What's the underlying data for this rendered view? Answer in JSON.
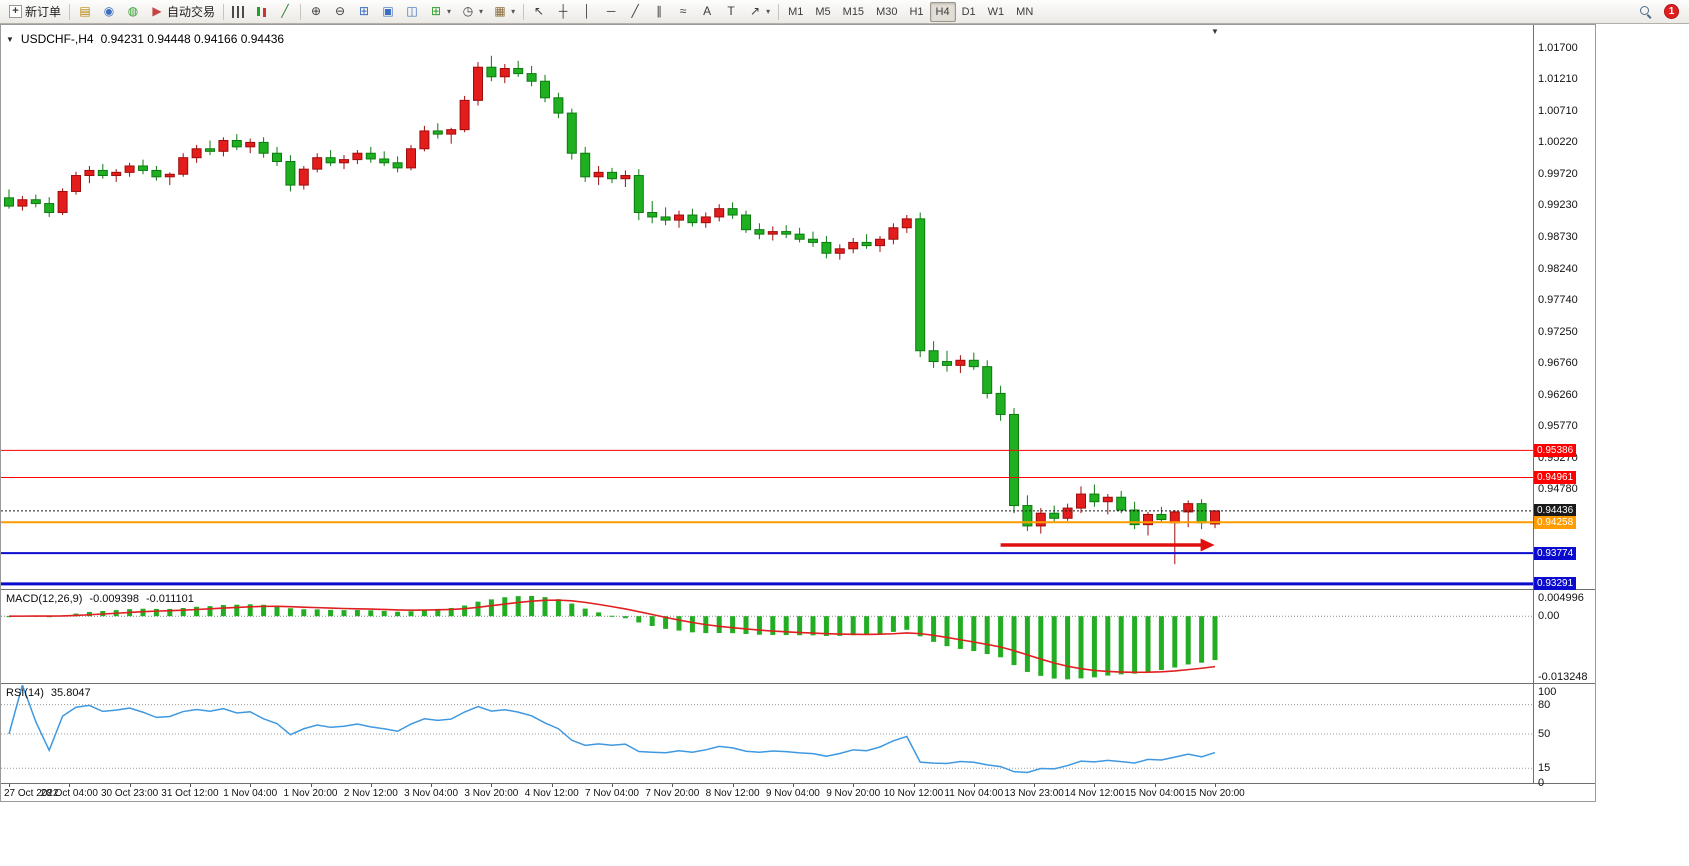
{
  "toolbar": {
    "notification_count": "1",
    "dropdown_glyph": "▾",
    "items": [
      {
        "type": "button",
        "name": "new-order-button",
        "icon_name": "new-order-icon",
        "glyph": "+",
        "cls": "ic-doc",
        "label": "新订单"
      },
      {
        "type": "sep"
      },
      {
        "type": "button",
        "name": "market-watch-button",
        "icon_name": "market-watch-icon",
        "glyph": "▤",
        "color": "#b8860b"
      },
      {
        "type": "button",
        "name": "navigator-button",
        "icon_name": "navigator-icon",
        "glyph": "◉",
        "color": "#3a6ec0"
      },
      {
        "type": "button",
        "name": "terminal-button",
        "icon_name": "terminal-icon",
        "glyph": "◍",
        "color": "#2f9e2f"
      },
      {
        "type": "button",
        "name": "autotrading-button",
        "icon_name": "autotrading-icon",
        "glyph": "▶",
        "color": "#c74444",
        "label": "自动交易"
      },
      {
        "type": "sep"
      },
      {
        "type": "button",
        "name": "bar-chart-button",
        "icon_name": "bar-chart-icon",
        "cls": "cs-bars"
      },
      {
        "type": "button",
        "name": "candlestick-chart-button",
        "icon_name": "candlestick-chart-icon",
        "cls": "cs-candles"
      },
      {
        "type": "button",
        "name": "line-chart-button",
        "icon_name": "line-chart-icon",
        "glyph": "╱",
        "color": "#2a7a2a"
      },
      {
        "type": "sep"
      },
      {
        "type": "button",
        "name": "zoom-in-button",
        "icon_name": "zoom-in-icon",
        "glyph": "⊕"
      },
      {
        "type": "button",
        "name": "zoom-out-button",
        "icon_name": "zoom-out-icon",
        "glyph": "⊖"
      },
      {
        "type": "button",
        "name": "tile-windows-button",
        "icon_name": "tile-windows-icon",
        "glyph": "⊞",
        "color": "#3a6ec0"
      },
      {
        "type": "button",
        "name": "cascade-windows-button",
        "icon_name": "cascade-windows-icon",
        "glyph": "▣",
        "color": "#3a6ec0"
      },
      {
        "type": "button",
        "name": "arrange-windows-button",
        "icon_name": "arrange-windows-icon",
        "glyph": "◫",
        "color": "#3a6ec0"
      },
      {
        "type": "button",
        "name": "new-chart-button",
        "icon_name": "new-chart-icon",
        "glyph": "⊞",
        "color": "#2f9e2f",
        "dd": true
      },
      {
        "type": "button",
        "name": "periods-button",
        "icon_name": "clock-icon",
        "glyph": "◷",
        "dd": true
      },
      {
        "type": "button",
        "name": "templates-button",
        "icon_name": "template-icon",
        "glyph": "▦",
        "color": "#8a6d3b",
        "dd": true
      },
      {
        "type": "sep"
      },
      {
        "type": "button",
        "name": "cursor-button",
        "icon_name": "cursor-icon",
        "glyph": "↖"
      },
      {
        "type": "button",
        "name": "crosshair-button",
        "icon_name": "crosshair-icon",
        "glyph": "┼"
      },
      {
        "type": "button",
        "name": "vertical-line-button",
        "icon_name": "vertical-line-icon",
        "glyph": "│"
      },
      {
        "type": "button",
        "name": "horizontal-line-button",
        "icon_name": "horizontal-line-icon",
        "glyph": "─"
      },
      {
        "type": "button",
        "name": "trendline-button",
        "icon_name": "trendline-icon",
        "glyph": "╱"
      },
      {
        "type": "button",
        "name": "channel-button",
        "icon_name": "channel-icon",
        "glyph": "∥"
      },
      {
        "type": "button",
        "name": "fibonacci-button",
        "icon_name": "fibonacci-icon",
        "glyph": "≈"
      },
      {
        "type": "button",
        "name": "text-button",
        "icon_name": "text-icon",
        "glyph": "A"
      },
      {
        "type": "button",
        "name": "text-label-button",
        "icon_name": "text-label-icon",
        "glyph": "T"
      },
      {
        "type": "button",
        "name": "arrows-button",
        "icon_name": "arrows-icon",
        "glyph": "↗",
        "dd": true
      },
      {
        "type": "sep"
      },
      {
        "type": "tf",
        "buttons": [
          {
            "label": "M1"
          },
          {
            "label": "M5"
          },
          {
            "label": "M15"
          },
          {
            "label": "M30"
          },
          {
            "label": "H1"
          },
          {
            "label": "H4",
            "active": true
          },
          {
            "label": "D1"
          },
          {
            "label": "W1"
          },
          {
            "label": "MN"
          }
        ]
      }
    ]
  },
  "chart": {
    "title": "USDCHF-,H4",
    "ohlc_text": "0.94231 0.94448 0.94166 0.94436",
    "open": "0.94231",
    "high": "0.94448",
    "low": "0.94166",
    "close": "0.94436"
  },
  "icons": {
    "one_click_toggle": "▼",
    "shift_marker": "▼"
  },
  "price_axis": {
    "ticks": [
      "1.01700",
      "1.01210",
      "1.00710",
      "1.00220",
      "0.99720",
      "0.99230",
      "0.98730",
      "0.98240",
      "0.97740",
      "0.97250",
      "0.96760",
      "0.96260",
      "0.95770",
      "0.95270",
      "0.94780"
    ]
  },
  "levels": [
    {
      "price": 0.95386,
      "label": "0.95386",
      "color": "#ff0000",
      "width": 1
    },
    {
      "price": 0.94961,
      "label": "0.94961",
      "color": "#ff0000",
      "width": 1
    },
    {
      "price": 0.94436,
      "label": "0.94436",
      "color": "#1a1a1a",
      "width": 1,
      "style": "dotted"
    },
    {
      "price": 0.94258,
      "label": "0.94258",
      "color": "#ff9c00",
      "width": 2
    },
    {
      "price": 0.93774,
      "label": "0.93774",
      "color": "#0b0bcf",
      "width": 2
    },
    {
      "price": 0.93291,
      "label": "0.93291",
      "color": "#0b0bcf",
      "width": 3
    }
  ],
  "annotation_arrow": {
    "from_index": 74,
    "to_index": 89,
    "price": 0.939,
    "color": "#e01010"
  },
  "chart_data": {
    "type": "candlestick",
    "symbol": "USDCHF-",
    "timeframe": "H4",
    "ylim": [
      0.9321,
      1.02
    ],
    "up_color": "#e31c1c",
    "up_border": "#9e0d0d",
    "down_color": "#1fb021",
    "down_border": "#0d7a10",
    "candles": [
      [
        0.9935,
        0.9948,
        0.9918,
        0.9922
      ],
      [
        0.9922,
        0.9938,
        0.9915,
        0.9932
      ],
      [
        0.9932,
        0.994,
        0.992,
        0.9926
      ],
      [
        0.9926,
        0.9936,
        0.9905,
        0.9912
      ],
      [
        0.9912,
        0.995,
        0.9908,
        0.9945
      ],
      [
        0.9945,
        0.9976,
        0.994,
        0.997
      ],
      [
        0.997,
        0.9985,
        0.9958,
        0.9978
      ],
      [
        0.9978,
        0.9988,
        0.9965,
        0.997
      ],
      [
        0.997,
        0.998,
        0.996,
        0.9975
      ],
      [
        0.9975,
        0.999,
        0.9968,
        0.9985
      ],
      [
        0.9985,
        0.9995,
        0.9972,
        0.9978
      ],
      [
        0.9978,
        0.9985,
        0.9962,
        0.9968
      ],
      [
        0.9968,
        0.9975,
        0.9955,
        0.9972
      ],
      [
        0.9972,
        1.0005,
        0.9968,
        0.9998
      ],
      [
        0.9998,
        1.0018,
        0.999,
        1.0012
      ],
      [
        1.0012,
        1.0025,
        1.0002,
        1.0008
      ],
      [
        1.0008,
        1.003,
        1.0,
        1.0025
      ],
      [
        1.0025,
        1.0035,
        1.001,
        1.0015
      ],
      [
        1.0015,
        1.0028,
        1.0005,
        1.0022
      ],
      [
        1.0022,
        1.003,
        0.9998,
        1.0005
      ],
      [
        1.0005,
        1.0015,
        0.9985,
        0.9992
      ],
      [
        0.9992,
        1.0002,
        0.9945,
        0.9955
      ],
      [
        0.9955,
        0.9985,
        0.9948,
        0.998
      ],
      [
        0.998,
        1.0005,
        0.9975,
        0.9998
      ],
      [
        0.9998,
        1.001,
        0.9985,
        0.999
      ],
      [
        0.999,
        1.0002,
        0.998,
        0.9995
      ],
      [
        0.9995,
        1.001,
        0.9988,
        1.0005
      ],
      [
        1.0005,
        1.0015,
        0.999,
        0.9996
      ],
      [
        0.9996,
        1.0008,
        0.9985,
        0.999
      ],
      [
        0.999,
        1.0,
        0.9975,
        0.9982
      ],
      [
        0.9982,
        1.0018,
        0.9978,
        1.0012
      ],
      [
        1.0012,
        1.0048,
        1.0008,
        1.004
      ],
      [
        1.004,
        1.0052,
        1.0028,
        1.0035
      ],
      [
        1.0035,
        1.0045,
        1.002,
        1.0042
      ],
      [
        1.0042,
        1.0095,
        1.0038,
        1.0088
      ],
      [
        1.0088,
        1.0148,
        1.008,
        1.014
      ],
      [
        1.014,
        1.0158,
        1.0118,
        1.0125
      ],
      [
        1.0125,
        1.0145,
        1.0115,
        1.0138
      ],
      [
        1.0138,
        1.015,
        1.0125,
        1.013
      ],
      [
        1.013,
        1.0142,
        1.011,
        1.0118
      ],
      [
        1.0118,
        1.0128,
        1.0085,
        1.0092
      ],
      [
        1.0092,
        1.01,
        1.006,
        1.0068
      ],
      [
        1.0068,
        1.0075,
        0.9995,
        1.0005
      ],
      [
        1.0005,
        1.0015,
        0.996,
        0.9968
      ],
      [
        0.9968,
        0.9985,
        0.9955,
        0.9975
      ],
      [
        0.9975,
        0.9982,
        0.9958,
        0.9965
      ],
      [
        0.9965,
        0.9978,
        0.9952,
        0.997
      ],
      [
        0.997,
        0.998,
        0.99,
        0.9912
      ],
      [
        0.9912,
        0.993,
        0.9895,
        0.9905
      ],
      [
        0.9905,
        0.992,
        0.9892,
        0.99
      ],
      [
        0.99,
        0.9915,
        0.9888,
        0.9908
      ],
      [
        0.9908,
        0.9918,
        0.989,
        0.9896
      ],
      [
        0.9896,
        0.9912,
        0.9888,
        0.9905
      ],
      [
        0.9905,
        0.9925,
        0.9898,
        0.9918
      ],
      [
        0.9918,
        0.9928,
        0.9902,
        0.9908
      ],
      [
        0.9908,
        0.9915,
        0.988,
        0.9885
      ],
      [
        0.9885,
        0.9895,
        0.987,
        0.9878
      ],
      [
        0.9878,
        0.989,
        0.9868,
        0.9882
      ],
      [
        0.9882,
        0.9892,
        0.9872,
        0.9878
      ],
      [
        0.9878,
        0.9888,
        0.9865,
        0.987
      ],
      [
        0.987,
        0.9882,
        0.9858,
        0.9865
      ],
      [
        0.9865,
        0.9875,
        0.984,
        0.9848
      ],
      [
        0.9848,
        0.9862,
        0.9838,
        0.9855
      ],
      [
        0.9855,
        0.9872,
        0.9848,
        0.9865
      ],
      [
        0.9865,
        0.9878,
        0.9855,
        0.986
      ],
      [
        0.986,
        0.9875,
        0.985,
        0.987
      ],
      [
        0.987,
        0.9895,
        0.9862,
        0.9888
      ],
      [
        0.9888,
        0.9908,
        0.988,
        0.9902
      ],
      [
        0.9902,
        0.9912,
        0.9685,
        0.9695
      ],
      [
        0.9695,
        0.971,
        0.9668,
        0.9678
      ],
      [
        0.9678,
        0.9695,
        0.9662,
        0.9672
      ],
      [
        0.9672,
        0.9688,
        0.966,
        0.968
      ],
      [
        0.968,
        0.9692,
        0.9665,
        0.967
      ],
      [
        0.967,
        0.968,
        0.962,
        0.9628
      ],
      [
        0.9628,
        0.964,
        0.9585,
        0.9595
      ],
      [
        0.9595,
        0.9605,
        0.944,
        0.9452
      ],
      [
        0.9452,
        0.9468,
        0.9412,
        0.942
      ],
      [
        0.942,
        0.9448,
        0.9408,
        0.944
      ],
      [
        0.944,
        0.9452,
        0.9425,
        0.9432
      ],
      [
        0.9432,
        0.9455,
        0.9428,
        0.9448
      ],
      [
        0.9448,
        0.9482,
        0.944,
        0.947
      ],
      [
        0.947,
        0.9485,
        0.945,
        0.9458
      ],
      [
        0.9458,
        0.947,
        0.9438,
        0.9465
      ],
      [
        0.9465,
        0.9475,
        0.944,
        0.9445
      ],
      [
        0.9445,
        0.9458,
        0.9415,
        0.9422
      ],
      [
        0.9422,
        0.9442,
        0.9405,
        0.9438
      ],
      [
        0.9438,
        0.945,
        0.9425,
        0.943
      ],
      [
        0.9425,
        0.9445,
        0.936,
        0.9442
      ],
      [
        0.9442,
        0.946,
        0.9418,
        0.9455
      ],
      [
        0.9455,
        0.9462,
        0.9415,
        0.9425
      ],
      [
        0.94231,
        0.94448,
        0.94166,
        0.94436
      ]
    ]
  },
  "macd": {
    "label": "MACD(12,26,9)",
    "value_main": "-0.009398",
    "value_signal": "-0.011101",
    "axis": [
      "0.004996",
      "0.00",
      "-0.013248"
    ],
    "max": 0.004996,
    "min": -0.013248,
    "histogram_color": "#22ad22",
    "signal_color": "#e02020"
  },
  "rsi": {
    "label": "RSI(14)",
    "value": "35.8047",
    "axis": [
      "100",
      "80",
      "50",
      "15",
      "0"
    ],
    "levels": [
      80,
      50,
      15
    ],
    "line_color": "#3f98e0"
  },
  "time_axis": {
    "labels": [
      "27 Oct 2022",
      "28 Oct 04:00",
      "30 Oct 23:00",
      "31 Oct 12:00",
      "1 Nov 04:00",
      "1 Nov 20:00",
      "2 Nov 12:00",
      "3 Nov 04:00",
      "3 Nov 20:00",
      "4 Nov 12:00",
      "7 Nov 04:00",
      "7 Nov 20:00",
      "8 Nov 12:00",
      "9 Nov 04:00",
      "9 Nov 20:00",
      "10 Nov 12:00",
      "11 Nov 04:00",
      "13 Nov 23:00",
      "14 Nov 12:00",
      "15 Nov 04:00",
      "15 Nov 20:00"
    ]
  }
}
